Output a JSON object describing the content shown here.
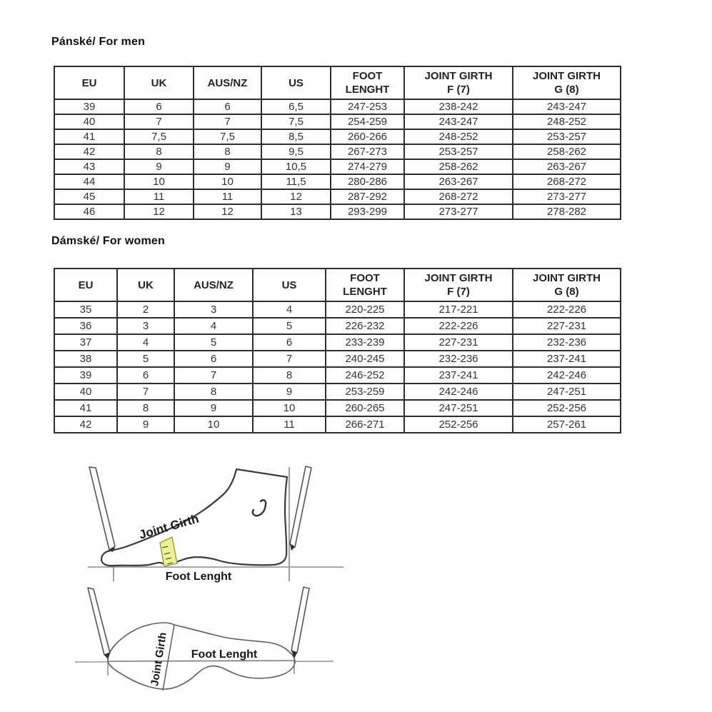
{
  "titles": {
    "men": "Pánské/ For men",
    "women": "Dámské/ For women"
  },
  "table_headers": [
    "EU",
    "UK",
    "AUS/NZ",
    "US",
    "FOOT\nLENGHT",
    "JOINT GIRTH\nF (7)",
    "JOINT GIRTH\nG (8)"
  ],
  "men_table": {
    "rows": [
      [
        "39",
        "6",
        "6",
        "6,5",
        "247-253",
        "238-242",
        "243-247"
      ],
      [
        "40",
        "7",
        "7",
        "7,5",
        "254-259",
        "243-247",
        "248-252"
      ],
      [
        "41",
        "7,5",
        "7,5",
        "8,5",
        "260-266",
        "248-252",
        "253-257"
      ],
      [
        "42",
        "8",
        "8",
        "9,5",
        "267-273",
        "253-257",
        "258-262"
      ],
      [
        "43",
        "9",
        "9",
        "10,5",
        "274-279",
        "258-262",
        "263-267"
      ],
      [
        "44",
        "10",
        "10",
        "11,5",
        "280-286",
        "263-267",
        "268-272"
      ],
      [
        "45",
        "11",
        "11",
        "12",
        "287-292",
        "268-272",
        "273-277"
      ],
      [
        "46",
        "12",
        "12",
        "13",
        "293-299",
        "273-277",
        "278-282"
      ]
    ]
  },
  "women_table": {
    "rows": [
      [
        "35",
        "2",
        "3",
        "4",
        "220-225",
        "217-221",
        "222-226"
      ],
      [
        "36",
        "3",
        "4",
        "5",
        "226-232",
        "222-226",
        "227-231"
      ],
      [
        "37",
        "4",
        "5",
        "6",
        "233-239",
        "227-231",
        "232-236"
      ],
      [
        "38",
        "5",
        "6",
        "7",
        "240-245",
        "232-236",
        "237-241"
      ],
      [
        "39",
        "6",
        "7",
        "8",
        "246-252",
        "237-241",
        "242-246"
      ],
      [
        "40",
        "7",
        "8",
        "9",
        "253-259",
        "242-246",
        "247-251"
      ],
      [
        "41",
        "8",
        "9",
        "10",
        "260-265",
        "247-251",
        "252-256"
      ],
      [
        "42",
        "9",
        "10",
        "11",
        "266-271",
        "252-256",
        "257-261"
      ]
    ]
  },
  "diagrams": {
    "side_view": {
      "joint_girth": "Joint Girth",
      "foot_length": "Foot Lenght"
    },
    "top_view": {
      "joint_girth": "Joint Girth",
      "foot_length": "Foot Lenght"
    }
  },
  "colors": {
    "table_border": "#2e2e2e",
    "text": "#303030",
    "tape_fill": "#eef296",
    "tape_stroke": "#9a9b3c",
    "outline": "#3a3a3a"
  }
}
